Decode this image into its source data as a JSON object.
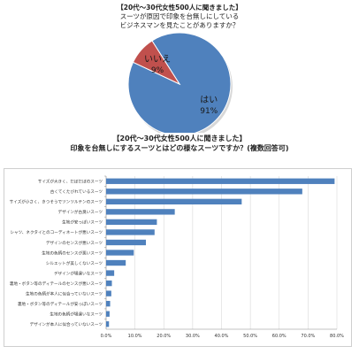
{
  "colors": {
    "blue": "#4f81bd",
    "red": "#c0504d",
    "grid": "#d9d9d9",
    "text": "#333333"
  },
  "chart_data": [
    {
      "type": "pie",
      "title_lines": [
        "【20代～30代女性500人に聞きました】",
        "スーツが原因で印象を台無しにしている",
        "ビジネスマンを見たことがありますか？"
      ],
      "slices": [
        {
          "label": "はい",
          "value": 91,
          "value_label": "91%",
          "color": "#4f81bd"
        },
        {
          "label": "いいえ",
          "value": 9,
          "value_label": "9%",
          "color": "#c0504d"
        }
      ]
    },
    {
      "type": "bar",
      "orientation": "horizontal",
      "title_lines": [
        "【20代～30代女性500人に聞きました】",
        "印象を台無しにするスーツとはどの様なスーツですか？(複数回答可)"
      ],
      "categories": [
        "サイズが大きく、だぼだぼのスーツ",
        "古くてくたびれているスーツ",
        "サイズが小さく、きつそうでツンツルテンのスーツ",
        "デザインが古臭いスーツ",
        "生地が安っぽいスーツ",
        "シャツ、ネクタイとのコーディネートが悪いスーツ",
        "デザインのセンスが悪いスーツ",
        "生地の色柄のセンスが悪いスーツ",
        "シルエットが美しくないスーツ",
        "デザインが場違いなスーツ",
        "裏地・ボタン等のディテールのセンスが悪いスーツ",
        "生地の色柄が本人に似合っていないスーツ",
        "裏地・ボタン等のディテールが安っぽいスーツ",
        "生地の色柄が場違いなスーツ",
        "デザインが本人に似合っていないスーツ"
      ],
      "values": [
        79.2,
        68.0,
        47.0,
        23.8,
        17.6,
        16.8,
        13.8,
        9.6,
        6.8,
        2.8,
        2.0,
        1.8,
        1.4,
        1.2,
        1.0
      ],
      "xlim": [
        0,
        80
      ],
      "ticks": [
        0,
        10,
        20,
        30,
        40,
        50,
        60,
        70,
        80
      ],
      "tick_labels": [
        "0.0%",
        "10.0%",
        "20.0%",
        "30.0%",
        "40.0%",
        "50.0%",
        "60.0%",
        "70.0%",
        "80.0%"
      ],
      "grid": true,
      "color": "#4f81bd"
    }
  ]
}
